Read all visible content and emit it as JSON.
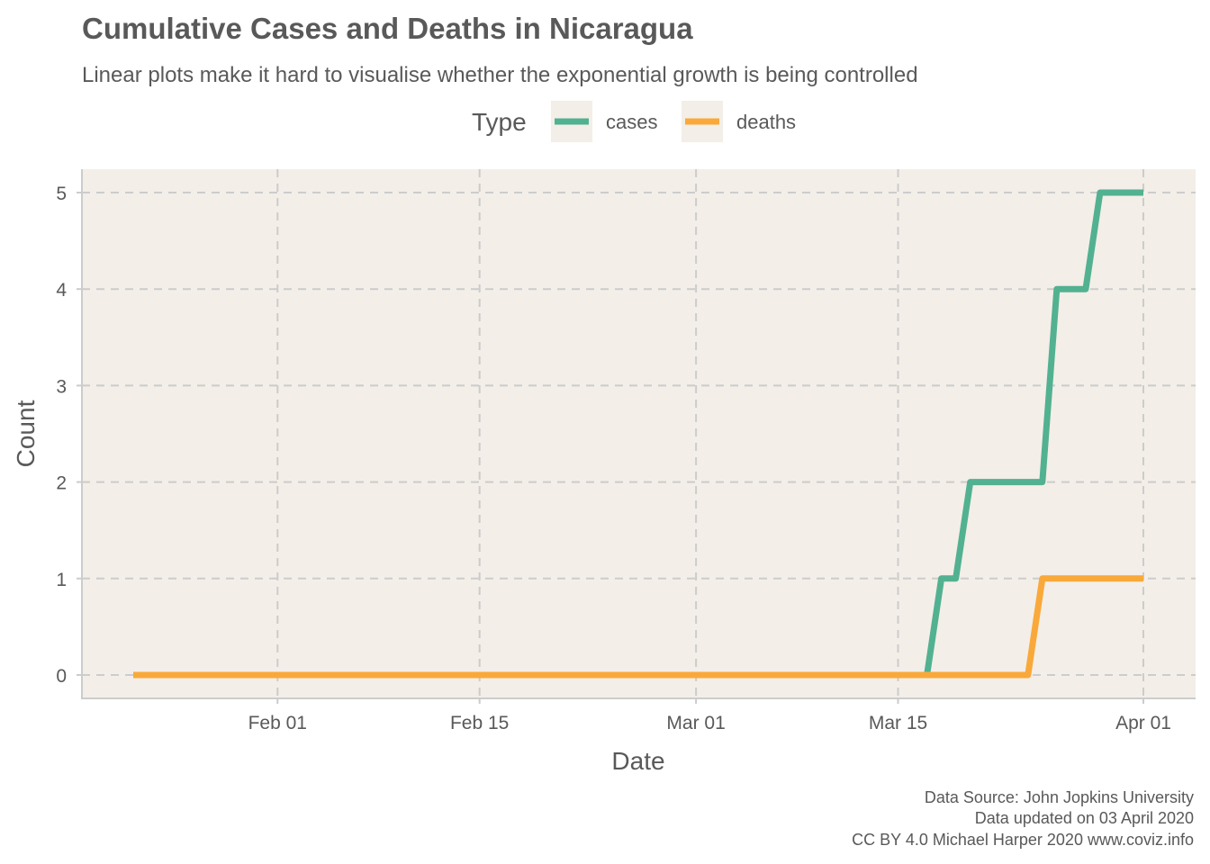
{
  "chart_data": {
    "type": "line",
    "title": "Cumulative Cases and Deaths in Nicaragua",
    "subtitle": "Linear plots make it hard to visualise whether the exponential growth is being controlled",
    "xlabel": "Date",
    "ylabel": "Count",
    "x_range": [
      "2020-01-22",
      "2020-04-02"
    ],
    "ylim": [
      0,
      5
    ],
    "x_ticks": [
      {
        "date": "2020-02-01",
        "label": "Feb 01"
      },
      {
        "date": "2020-02-15",
        "label": "Feb 15"
      },
      {
        "date": "2020-03-01",
        "label": "Mar 01"
      },
      {
        "date": "2020-03-15",
        "label": "Mar 15"
      },
      {
        "date": "2020-04-01",
        "label": "Apr 01"
      }
    ],
    "y_ticks": [
      "0",
      "1",
      "2",
      "3",
      "4",
      "5"
    ],
    "grid": true,
    "panel_background": "#F3EEE7",
    "grid_color": "#CCCCCC",
    "legend": {
      "title": "Type",
      "position": "top",
      "entries": [
        {
          "label": "cases",
          "color": "#52B191"
        },
        {
          "label": "deaths",
          "color": "#F9A93A"
        }
      ]
    },
    "series": [
      {
        "label": "cases",
        "color": "#52B191",
        "points": [
          [
            "2020-01-22",
            0
          ],
          [
            "2020-03-17",
            0
          ],
          [
            "2020-03-18",
            1
          ],
          [
            "2020-03-19",
            1
          ],
          [
            "2020-03-20",
            2
          ],
          [
            "2020-03-25",
            2
          ],
          [
            "2020-03-26",
            4
          ],
          [
            "2020-03-28",
            4
          ],
          [
            "2020-03-29",
            5
          ],
          [
            "2020-04-01",
            5
          ]
        ]
      },
      {
        "label": "deaths",
        "color": "#F9A93A",
        "points": [
          [
            "2020-01-22",
            0
          ],
          [
            "2020-03-24",
            0
          ],
          [
            "2020-03-25",
            1
          ],
          [
            "2020-04-01",
            1
          ]
        ]
      }
    ],
    "caption": [
      "Data Source: John Jopkins University",
      "Data updated on 03 April 2020",
      "CC BY 4.0 Michael Harper 2020 www.coviz.info"
    ]
  }
}
